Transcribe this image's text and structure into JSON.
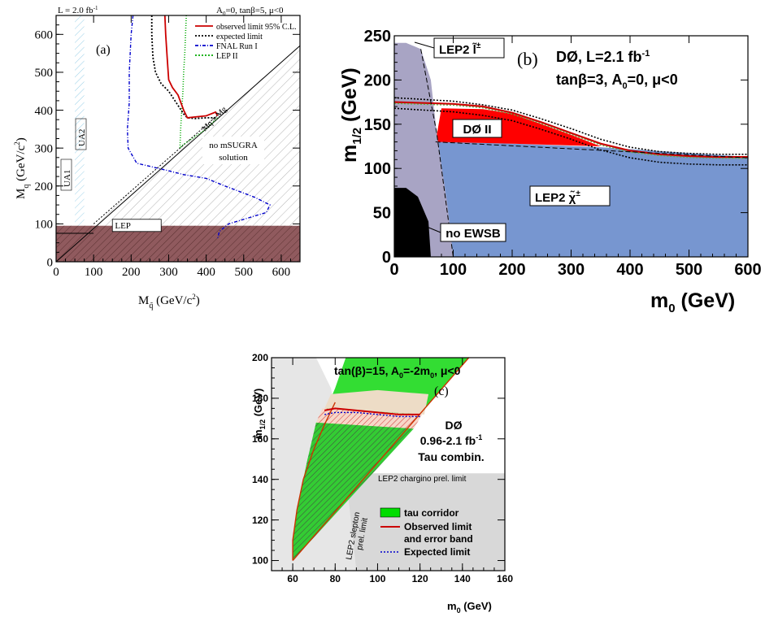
{
  "chart_data": [
    {
      "type": "area",
      "panel_label": "(a)",
      "top_left_text": "L = 2.0 fb",
      "top_left_sup": "-1",
      "top_right_text": "A",
      "top_right_sub": "0",
      "top_right_rest": "=0, tanβ=5, μ<0",
      "xlabel": "M",
      "xlabel_sub": "q̃",
      "xlabel_unit": " (GeV/c",
      "xlabel_unit_sup": "2",
      "xlabel_close": ")",
      "ylabel": "M",
      "ylabel_sub": "q",
      "ylabel_unit": " (GeV/c",
      "ylabel_unit_sup": "2",
      "ylabel_close": ")",
      "xlim": [
        0,
        650
      ],
      "ylim": [
        0,
        650
      ],
      "x_ticks": [
        "0",
        "100",
        "200",
        "300",
        "400",
        "500",
        "600"
      ],
      "y_ticks": [
        "0",
        "100",
        "200",
        "300",
        "400",
        "500",
        "600"
      ],
      "legend": [
        {
          "label": "observed limit 95% C.L.",
          "color": "#cc0000",
          "style": "solid"
        },
        {
          "label": "expected limit",
          "color": "#000000",
          "style": "dotted"
        },
        {
          "label": "FNAL Run I",
          "color": "#0000cc",
          "style": "dashdot"
        },
        {
          "label": "LEP II",
          "color": "#00aa00",
          "style": "dotted"
        }
      ],
      "region_labels": {
        "lep": "LEP",
        "nosugra_1": "no mSUGRA",
        "nosugra_2": "solution",
        "ua1": "UA1",
        "ua2": "UA2",
        "diag": "M"
      },
      "diag_subs": {
        "a": "q",
        "b": " = M",
        "c": "g"
      },
      "observed_limit": {
        "x": [
          290,
          292,
          296,
          300,
          310,
          325,
          340,
          350,
          370,
          400,
          425,
          430
        ],
        "y": [
          650,
          600,
          540,
          480,
          460,
          440,
          400,
          380,
          382,
          385,
          395,
          385
        ]
      },
      "expected_limit": {
        "x": [
          255,
          255,
          258,
          265,
          280,
          300,
          320,
          340,
          350,
          370,
          400,
          430
        ],
        "y": [
          650,
          600,
          540,
          500,
          470,
          450,
          420,
          390,
          380,
          378,
          380,
          380
        ]
      },
      "fnal_run1": {
        "x": [
          205,
          200,
          195,
          195,
          190,
          192,
          215,
          300,
          340,
          400,
          450,
          530,
          570,
          560,
          460,
          435,
          430
        ],
        "y": [
          650,
          600,
          500,
          420,
          350,
          300,
          260,
          240,
          230,
          220,
          200,
          170,
          150,
          130,
          100,
          80,
          60
        ]
      },
      "lep2": {
        "x": [
          347,
          345,
          343,
          340,
          338,
          335,
          332,
          330,
          340,
          400,
          430
        ],
        "y": [
          650,
          600,
          550,
          500,
          450,
          400,
          350,
          300,
          310,
          350,
          380
        ]
      }
    },
    {
      "type": "area",
      "panel_label": "(b)",
      "title_line1": "DØ, L=2.1 fb",
      "title_line1_sup": "-1",
      "title_line2": "tanβ=3, A",
      "title_line2_sub": "0",
      "title_line2_rest": "=0, μ<0",
      "xlabel": "m",
      "xlabel_sub": "0",
      "xlabel_unit": " (GeV)",
      "ylabel": "m",
      "ylabel_sub": "1/2",
      "ylabel_unit": " (GeV)",
      "xlim": [
        0,
        600
      ],
      "ylim": [
        0,
        250
      ],
      "x_ticks": [
        "0",
        "100",
        "200",
        "300",
        "400",
        "500",
        "600"
      ],
      "y_ticks": [
        "0",
        "50",
        "100",
        "150",
        "200",
        "250"
      ],
      "region_labels": {
        "lep2_slepton": "LEP2 l̃",
        "lep2_slepton_sup": "±",
        "d0": "DØ II",
        "lep2_chargino": "LEP2 χ̃",
        "lep2_chargino_sup": "±",
        "no_ewsb": "no EWSB"
      },
      "colors": {
        "slepton": "#a8a4c4",
        "chargino": "#7796d0",
        "excluded": "#ff0000",
        "no_ewsb": "#000000"
      },
      "observed_limit": {
        "x": [
          0,
          50,
          100,
          150,
          200,
          250,
          300,
          350,
          400,
          450,
          500,
          550,
          600
        ],
        "y": [
          175,
          174,
          173,
          170,
          163,
          152,
          140,
          128,
          120,
          116,
          114,
          113,
          113
        ]
      },
      "expected_limit": {
        "x": [
          0,
          50,
          100,
          150,
          200,
          250,
          300,
          350,
          400,
          450,
          500,
          550,
          600
        ],
        "y": [
          180,
          178,
          176,
          172,
          166,
          156,
          145,
          133,
          124,
          119,
          117,
          116,
          116
        ]
      }
    },
    {
      "type": "area",
      "panel_label": "(c)",
      "title": "tan(β)=15, A",
      "title_sub": "0",
      "title_rest": "=-2m",
      "title_sub2": "0",
      "title_end": ", μ<0",
      "annot_1": "DØ",
      "annot_2": "0.96-2.1 fb",
      "annot_2_sup": "-1",
      "annot_3": "Tau combin.",
      "xlabel": "m",
      "xlabel_sub": "0",
      "xlabel_unit": " (GeV)",
      "ylabel": "m",
      "ylabel_sub": "1/2",
      "ylabel_unit": " (GeV)",
      "xlim": [
        50,
        160
      ],
      "ylim": [
        95,
        200
      ],
      "x_ticks": [
        "60",
        "80",
        "100",
        "120",
        "140",
        "160"
      ],
      "y_ticks": [
        "100",
        "120",
        "140",
        "160",
        "180",
        "200"
      ],
      "region_labels": {
        "chargino": "LEP2 chargino prel. limit",
        "slepton_1": "LEP2 slepton",
        "slepton_2": "prel. limit"
      },
      "legend": [
        {
          "label": "tau corridor",
          "color": "#00dd00",
          "style": "box"
        },
        {
          "label": "Observed limit",
          "color": "#cc0000",
          "style": "solid"
        },
        {
          "label": "and error band",
          "color": "#cc0000",
          "style": "none"
        },
        {
          "label": "Expected limit",
          "color": "#0000cc",
          "style": "dotted"
        }
      ],
      "corridor_left": {
        "x": [
          60,
          60,
          62,
          65,
          70,
          75,
          80,
          85,
          90,
          95,
          100,
          105,
          110,
          115,
          120
        ],
        "y": [
          100,
          110,
          125,
          140,
          155,
          167,
          178,
          188,
          196,
          200,
          200,
          200,
          200,
          200,
          200
        ]
      },
      "observed_limit": {
        "x": [
          75,
          80,
          90,
          100,
          110,
          120
        ],
        "y": [
          174,
          175,
          174,
          173,
          172,
          172
        ]
      },
      "expected_limit": {
        "x": [
          75,
          80,
          90,
          100,
          110,
          120
        ],
        "y": [
          172,
          173,
          173,
          172,
          171,
          171
        ]
      }
    }
  ]
}
